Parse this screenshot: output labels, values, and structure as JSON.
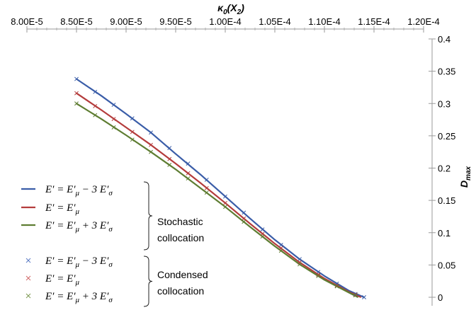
{
  "chart_data": {
    "type": "line",
    "title": "",
    "xlabel": "κ₀(X₂)",
    "ylabel": "D_max",
    "x_axis_position": "top",
    "y_axis_position": "right",
    "x_axis_reversed": false,
    "xlim": [
      8e-05,
      0.00012
    ],
    "ylim": [
      0,
      0.4
    ],
    "x_tick_labels": [
      "8.00E-5",
      "8.50E-5",
      "9.00E-5",
      "9.50E-5",
      "1.00E-4",
      "1.05E-4",
      "1.10E-4",
      "1.15E-4",
      "1.20E-4"
    ],
    "x_ticks": [
      8e-05,
      8.5e-05,
      9e-05,
      9.5e-05,
      0.0001,
      0.000105,
      0.00011,
      0.000115,
      0.00012
    ],
    "y_tick_labels": [
      "0",
      "0.05",
      "0.1",
      "0.15",
      "0.2",
      "0.25",
      "0.3",
      "0.35",
      "0.4"
    ],
    "y_ticks": [
      0,
      0.05,
      0.1,
      0.15,
      0.2,
      0.25,
      0.3,
      0.35,
      0.4
    ],
    "grid": false,
    "legend_position": "bottom-left",
    "series": [
      {
        "name": "E' = E'_μ − 3 E'_σ",
        "method": "Stochastic collocation",
        "style": "line",
        "color": "#3A5DA8",
        "x": [
          8.5e-05,
          8.75e-05,
          9e-05,
          9.25e-05,
          9.5e-05,
          9.75e-05,
          0.0001,
          0.0001025,
          0.000105,
          0.0001075,
          0.00011,
          0.0001125,
          0.000114
        ],
        "y": [
          0.338,
          0.312,
          0.284,
          0.255,
          0.222,
          0.19,
          0.156,
          0.122,
          0.089,
          0.059,
          0.033,
          0.01,
          0.0
        ]
      },
      {
        "name": "E' = E'_μ",
        "method": "Stochastic collocation",
        "style": "line",
        "color": "#B43C3C",
        "x": [
          8.5e-05,
          8.75e-05,
          9e-05,
          9.25e-05,
          9.5e-05,
          9.75e-05,
          0.0001,
          0.0001025,
          0.000105,
          0.0001075,
          0.00011,
          0.0001125,
          0.0001137
        ],
        "y": [
          0.316,
          0.29,
          0.263,
          0.236,
          0.207,
          0.177,
          0.146,
          0.114,
          0.083,
          0.054,
          0.029,
          0.008,
          0.0
        ]
      },
      {
        "name": "E' = E'_μ + 3 E'_σ",
        "method": "Stochastic collocation",
        "style": "line",
        "color": "#5E7D32",
        "x": [
          8.5e-05,
          8.75e-05,
          9e-05,
          9.25e-05,
          9.5e-05,
          9.75e-05,
          0.0001,
          0.0001025,
          0.000105,
          0.0001075,
          0.00011,
          0.0001125,
          0.0001134
        ],
        "y": [
          0.3,
          0.276,
          0.251,
          0.225,
          0.198,
          0.169,
          0.14,
          0.109,
          0.079,
          0.051,
          0.027,
          0.007,
          0.0
        ]
      },
      {
        "name": "E' = E'_μ − 3 E'_σ",
        "method": "Condensed collocation",
        "style": "marker",
        "color": "#3A5DA8",
        "x": [
          8.5e-05,
          8.6875e-05,
          8.875e-05,
          9.0625e-05,
          9.25e-05,
          9.4375e-05,
          9.625e-05,
          9.8125e-05,
          0.0001,
          0.000101875,
          0.00010375,
          0.000105625,
          0.0001075,
          0.000109375,
          0.00011125,
          0.000113125,
          0.000114
        ],
        "y": [
          0.338,
          0.318,
          0.298,
          0.277,
          0.255,
          0.231,
          0.207,
          0.182,
          0.156,
          0.131,
          0.105,
          0.081,
          0.059,
          0.039,
          0.021,
          0.005,
          0.0
        ]
      },
      {
        "name": "E' = E'_μ",
        "method": "Condensed collocation",
        "style": "marker",
        "color": "#B43C3C",
        "x": [
          8.5e-05,
          8.6875e-05,
          8.875e-05,
          9.0625e-05,
          9.25e-05,
          9.4375e-05,
          9.625e-05,
          9.8125e-05,
          0.0001,
          0.000101875,
          0.00010375,
          0.000105625,
          0.0001075,
          0.000109375,
          0.00011125,
          0.000113125
        ],
        "y": [
          0.316,
          0.296,
          0.276,
          0.256,
          0.236,
          0.214,
          0.192,
          0.169,
          0.146,
          0.122,
          0.098,
          0.076,
          0.054,
          0.035,
          0.018,
          0.004
        ]
      },
      {
        "name": "E' = E'_μ + 3 E'_σ",
        "method": "Condensed collocation",
        "style": "marker",
        "color": "#5E7D32",
        "x": [
          8.5e-05,
          8.6875e-05,
          8.875e-05,
          9.0625e-05,
          9.25e-05,
          9.4375e-05,
          9.625e-05,
          9.8125e-05,
          0.0001,
          0.000101875,
          0.00010375,
          0.000105625,
          0.0001075,
          0.000109375,
          0.00011125,
          0.000113125
        ],
        "y": [
          0.3,
          0.282,
          0.263,
          0.244,
          0.225,
          0.205,
          0.184,
          0.162,
          0.14,
          0.117,
          0.094,
          0.072,
          0.051,
          0.033,
          0.017,
          0.003
        ]
      }
    ],
    "legend": {
      "stochastic_group_label_line1": "Stochastic",
      "stochastic_group_label_line2": "collocation",
      "condensed_group_label_line1": "Condensed",
      "condensed_group_label_line2": "collocation",
      "entries": [
        {
          "prefix": "E′ = E′",
          "sub": "μ",
          "op": " − 3 E′",
          "sub2": "σ",
          "color": "#3A5DA8",
          "style": "line"
        },
        {
          "prefix": "E′ = E′",
          "sub": "μ",
          "op": "",
          "sub2": "",
          "color": "#B43C3C",
          "style": "line"
        },
        {
          "prefix": "E′ = E′",
          "sub": "μ",
          "op": " + 3 E′",
          "sub2": "σ",
          "color": "#5E7D32",
          "style": "line"
        },
        {
          "prefix": "E′ = E′",
          "sub": "μ",
          "op": " − 3 E′",
          "sub2": "σ",
          "color": "#5B7BC4",
          "style": "marker"
        },
        {
          "prefix": "E′ = E′",
          "sub": "μ",
          "op": "",
          "sub2": "",
          "color": "#D06A6A",
          "style": "marker"
        },
        {
          "prefix": "E′ = E′",
          "sub": "μ",
          "op": " + 3 E′",
          "sub2": "σ",
          "color": "#7E9A54",
          "style": "marker"
        }
      ]
    }
  },
  "axis_titles": {
    "x_main": "κ",
    "x_sub": "0",
    "x_rest_open": "(X",
    "x_rest_sub": "2",
    "x_rest_close": ")",
    "y_main": "D",
    "y_sub": "max"
  }
}
